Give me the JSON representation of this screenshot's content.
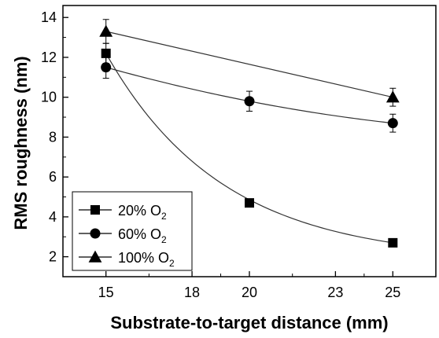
{
  "chart_data": {
    "type": "scatter",
    "xlabel": "Substrate-to-target distance (mm)",
    "ylabel": "RMS roughness (nm)",
    "xlim": [
      13.5,
      26.5
    ],
    "ylim": [
      1,
      14.6
    ],
    "x_ticks": [
      15,
      18,
      20,
      23,
      25
    ],
    "y_ticks": [
      2,
      4,
      6,
      8,
      10,
      12,
      14
    ],
    "grid": false,
    "legend_position": "bottom-left",
    "series": [
      {
        "name": "20% O2",
        "name_main": "20% O",
        "name_sub": "2",
        "marker": "square",
        "x": [
          15,
          20,
          25
        ],
        "y": [
          12.2,
          4.7,
          2.7
        ],
        "err": [
          0.5,
          0.15,
          0.15
        ],
        "fit": "exponential-decay"
      },
      {
        "name": "60% O2",
        "name_main": "60% O",
        "name_sub": "2",
        "marker": "circle",
        "x": [
          15,
          20,
          25
        ],
        "y": [
          11.5,
          9.8,
          8.7
        ],
        "err": [
          0.55,
          0.5,
          0.45
        ],
        "fit": "smooth"
      },
      {
        "name": "100% O2",
        "name_main": "100% O",
        "name_sub": "2",
        "marker": "triangle",
        "x": [
          15,
          25
        ],
        "y": [
          13.3,
          10.0
        ],
        "err": [
          0.6,
          0.45
        ],
        "fit": "linear"
      }
    ]
  }
}
